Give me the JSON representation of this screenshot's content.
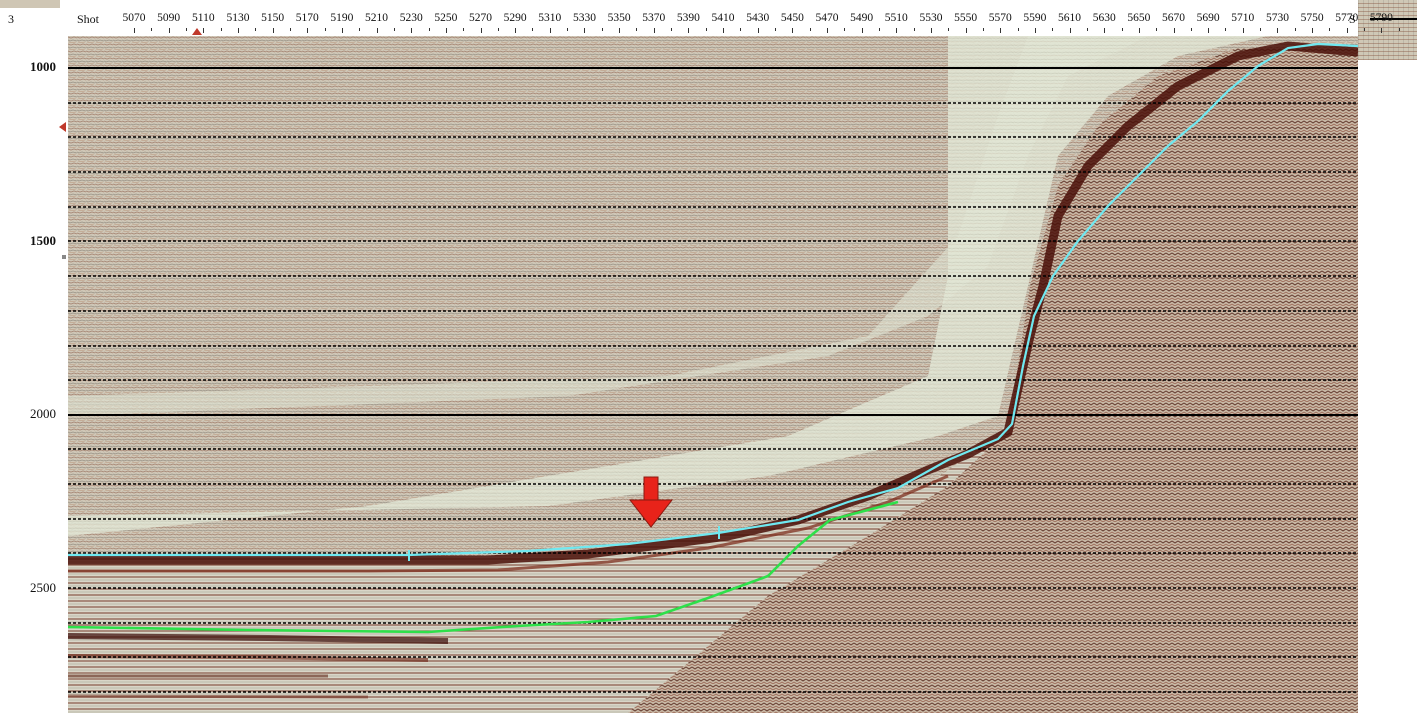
{
  "header": {
    "page_number": "3",
    "shot_label": "Shot",
    "right_label": "S",
    "shots": [
      "5070",
      "5090",
      "5110",
      "5130",
      "5150",
      "5170",
      "5190",
      "5210",
      "5230",
      "5250",
      "5270",
      "5290",
      "5310",
      "5330",
      "5350",
      "5370",
      "5390",
      "5410",
      "5430",
      "5450",
      "5470",
      "5490",
      "5510",
      "5530",
      "5550",
      "5570",
      "5590",
      "5610",
      "5630",
      "5650",
      "5670",
      "5690",
      "5710",
      "5730",
      "5750",
      "5770",
      "5790"
    ]
  },
  "time_axis": {
    "labels": [
      "1000",
      "1500",
      "2000",
      "2500"
    ],
    "bold_labels": [
      "1000",
      "1500"
    ]
  },
  "colors": {
    "seabed_pick": "#6fe8f0",
    "base_pick": "#2ee04a",
    "arrow": "#e8231a",
    "trace_dark": "#5a1a10",
    "background_light": "#dfe6d2"
  },
  "annotations": {
    "arrow_icon": "down-arrow-icon"
  }
}
